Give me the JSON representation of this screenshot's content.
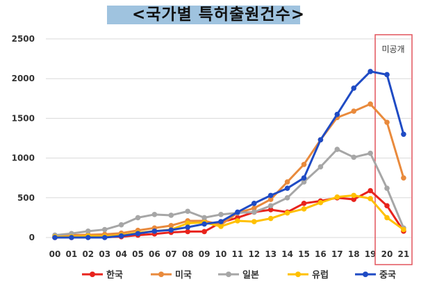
{
  "chart_data": {
    "type": "line",
    "title": "<국가별  특허출원건수>",
    "categories": [
      "00",
      "01",
      "02",
      "03",
      "04",
      "05",
      "06",
      "07",
      "08",
      "09",
      "10",
      "11",
      "12",
      "13",
      "14",
      "15",
      "16",
      "17",
      "18",
      "19",
      "20",
      "21"
    ],
    "yticks": [
      0,
      500,
      1000,
      1500,
      2000,
      2500
    ],
    "ylim": [
      0,
      2500
    ],
    "annotation": "미공개",
    "series": [
      {
        "name": "한국",
        "color": "#e8231c",
        "values": [
          0,
          0,
          10,
          5,
          10,
          30,
          45,
          65,
          75,
          75,
          190,
          250,
          320,
          350,
          320,
          430,
          460,
          500,
          480,
          590,
          400,
          80
        ]
      },
      {
        "name": "미국",
        "color": "#e98a3c",
        "values": [
          20,
          30,
          35,
          40,
          55,
          90,
          120,
          150,
          210,
          210,
          160,
          310,
          370,
          480,
          700,
          920,
          1230,
          1510,
          1590,
          1680,
          1450,
          750
        ]
      },
      {
        "name": "일본",
        "color": "#a6a6a6",
        "values": [
          30,
          50,
          80,
          100,
          160,
          250,
          290,
          280,
          330,
          250,
          290,
          310,
          320,
          400,
          500,
          700,
          890,
          1110,
          1010,
          1060,
          620,
          120
        ]
      },
      {
        "name": "유럽",
        "color": "#ffc000",
        "values": [
          10,
          10,
          20,
          15,
          30,
          60,
          80,
          100,
          180,
          190,
          140,
          210,
          200,
          240,
          310,
          360,
          440,
          510,
          530,
          490,
          250,
          100
        ]
      },
      {
        "name": "중국",
        "color": "#1f4bc4",
        "values": [
          0,
          0,
          0,
          0,
          20,
          50,
          80,
          95,
          130,
          170,
          200,
          320,
          430,
          530,
          620,
          750,
          1230,
          1550,
          1880,
          2090,
          2050,
          1300
        ]
      }
    ]
  }
}
